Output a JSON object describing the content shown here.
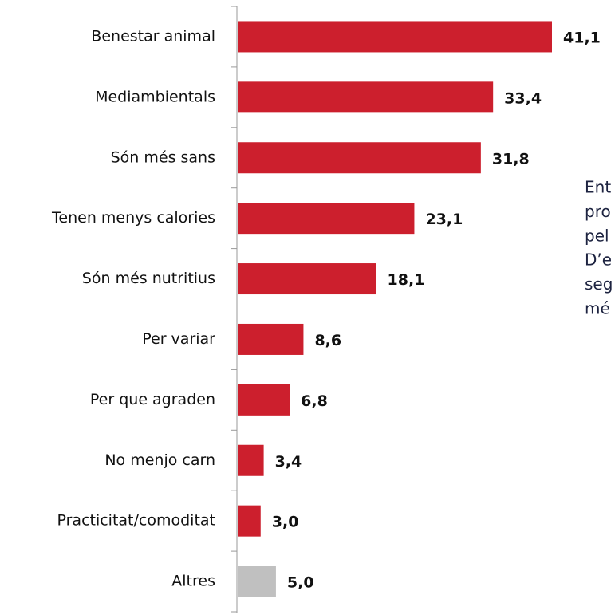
{
  "chart_data": {
    "type": "bar",
    "orientation": "horizontal",
    "categories": [
      "Benestar animal",
      "Mediambientals",
      "Són més sans",
      "Tenen menys calories",
      "Són més nutritius",
      "Per variar",
      "Per que agraden",
      "No menjo carn",
      "Practicitat/comoditat",
      "Altres"
    ],
    "values": [
      41.1,
      33.4,
      31.8,
      23.1,
      18.1,
      8.6,
      6.8,
      3.4,
      3.0,
      5.0
    ],
    "value_labels": [
      "41,1",
      "33,4",
      "31,8",
      "23,1",
      "18,1",
      "8,6",
      "6,8",
      "3,4",
      "3,0",
      "5,0"
    ],
    "colors": [
      "#cc1f2d",
      "#cc1f2d",
      "#cc1f2d",
      "#cc1f2d",
      "#cc1f2d",
      "#cc1f2d",
      "#cc1f2d",
      "#cc1f2d",
      "#cc1f2d",
      "#c0c0c0"
    ],
    "annotation": [
      "Ent",
      "pro",
      "pel",
      "D’e",
      "seg",
      "mé"
    ]
  }
}
